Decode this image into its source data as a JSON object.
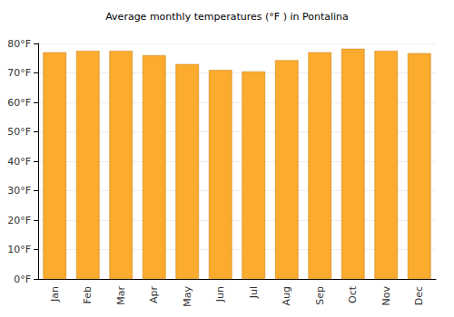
{
  "chart_data": {
    "type": "bar",
    "title": "Average monthly temperatures (°F ) in Pontalina",
    "categories": [
      "Jan",
      "Feb",
      "Mar",
      "Apr",
      "May",
      "Jun",
      "Jul",
      "Aug",
      "Sep",
      "Oct",
      "Nov",
      "Dec"
    ],
    "values": [
      77,
      77.5,
      77.5,
      76,
      73,
      71,
      70.5,
      74.3,
      77,
      78.2,
      77.5,
      76.7
    ],
    "color": "#fbab2d",
    "ylim": [
      0,
      80
    ],
    "yticks": [
      {
        "value": 0,
        "label": "0°F"
      },
      {
        "value": 10,
        "label": "10°F"
      },
      {
        "value": 20,
        "label": "20°F"
      },
      {
        "value": 30,
        "label": "30°F"
      },
      {
        "value": 40,
        "label": "40°F"
      },
      {
        "value": 50,
        "label": "50°F"
      },
      {
        "value": 60,
        "label": "60°F"
      },
      {
        "value": 70,
        "label": "70°F"
      },
      {
        "value": 80,
        "label": "80°F"
      }
    ],
    "grid": true
  }
}
